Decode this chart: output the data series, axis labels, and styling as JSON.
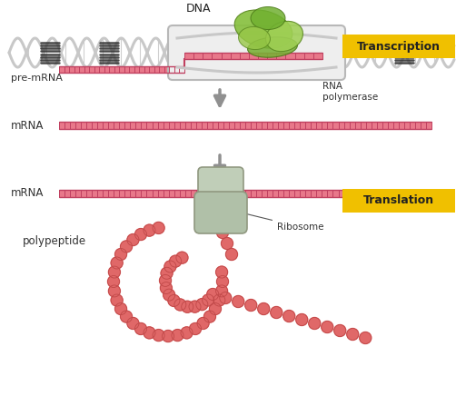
{
  "bg_color": "#ffffff",
  "mrna_color": "#e8788a",
  "mrna_stripe_color": "#c04060",
  "dna_color": "#c8c8c8",
  "dna_dark_color": "#303030",
  "rna_pol_green1": "#7bbf3a",
  "rna_pol_green2": "#a0d060",
  "rna_pol_green3": "#5a9828",
  "ribosome_color": "#c0ceb8",
  "ribosome_edge": "#909880",
  "arrow_color": "#909090",
  "peptide_color": "#e06868",
  "peptide_edge": "#c04848",
  "label_transcription": "Transcription",
  "label_translation": "Translation",
  "label_dna": "DNA",
  "label_premrna": "pre-mRNA",
  "label_mrna1": "mRNA",
  "label_mrna2": "mRNA",
  "label_rnapol": "RNA\npolymerase",
  "label_ribosome": "Ribosome",
  "label_polypeptide": "polypeptide",
  "box_color": "#f0c000",
  "dna_open_box_color": "#d8d8d8",
  "dna_open_box_edge": "#b0b0b0"
}
